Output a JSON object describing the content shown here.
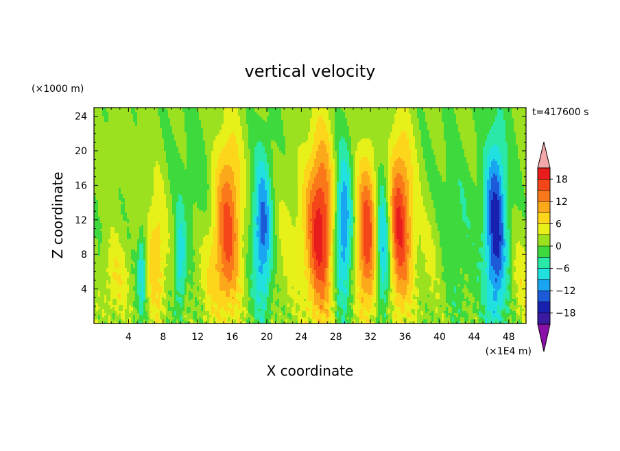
{
  "chart_data": {
    "type": "heatmap",
    "title": "vertical velocity",
    "xlabel": "X coordinate",
    "ylabel": "Z coordinate",
    "x_unit": "(×1E4 m)",
    "y_unit": "(×1000 m)",
    "time_label": "t=417600 s",
    "xlim": [
      0,
      50
    ],
    "ylim": [
      0,
      25
    ],
    "x_ticks": [
      4,
      8,
      12,
      16,
      20,
      24,
      28,
      32,
      36,
      40,
      44,
      48
    ],
    "y_ticks": [
      4,
      8,
      12,
      16,
      20,
      24
    ],
    "colorbar": {
      "tick_labels": [
        "18",
        "12",
        "6",
        "0",
        "−6",
        "−12",
        "−18"
      ],
      "tick_values": [
        18,
        12,
        6,
        0,
        -6,
        -12,
        -18
      ],
      "range": [
        -21,
        21
      ],
      "levels": [
        {
          "value": 19.5,
          "color": "#e81c1c"
        },
        {
          "value": 16.5,
          "color": "#f5461a"
        },
        {
          "value": 13.5,
          "color": "#fa7819"
        },
        {
          "value": 10.5,
          "color": "#fba81b"
        },
        {
          "value": 7.5,
          "color": "#fdd61c"
        },
        {
          "value": 4.5,
          "color": "#e8f01a"
        },
        {
          "value": 1.5,
          "color": "#9be11f"
        },
        {
          "value": -1.5,
          "color": "#3ed93c"
        },
        {
          "value": -4.5,
          "color": "#29e8a8"
        },
        {
          "value": -7.5,
          "color": "#20e0e0"
        },
        {
          "value": -10.5,
          "color": "#1aa5f2"
        },
        {
          "value": -13.5,
          "color": "#1c5ad8"
        },
        {
          "value": -16.5,
          "color": "#1820b0"
        },
        {
          "value": -19.5,
          "color": "#3a1aa0"
        }
      ],
      "over_color": "#f2a8a8",
      "under_color": "#8a10a8"
    },
    "features": [
      {
        "x": 15.5,
        "z": 11.5,
        "amp": 15,
        "sx": 1.1,
        "sz": 7.5
      },
      {
        "x": 26.2,
        "z": 11.0,
        "amp": 19,
        "sx": 1.2,
        "sz": 7.5
      },
      {
        "x": 31.6,
        "z": 10.0,
        "amp": 17,
        "sx": 0.9,
        "sz": 6.5
      },
      {
        "x": 35.3,
        "z": 11.5,
        "amp": 18,
        "sx": 1.1,
        "sz": 7.0
      },
      {
        "x": 7.2,
        "z": 8.0,
        "amp": 8,
        "sx": 0.9,
        "sz": 5.5
      },
      {
        "x": 2.5,
        "z": 5.0,
        "amp": 5,
        "sx": 1.0,
        "sz": 3.5
      },
      {
        "x": 13.5,
        "z": 6.0,
        "amp": 4,
        "sx": 1.2,
        "sz": 4.0
      },
      {
        "x": 22.5,
        "z": 9.0,
        "amp": 3,
        "sx": 1.5,
        "sz": 6.0
      },
      {
        "x": 39.0,
        "z": 8.0,
        "amp": 3,
        "sx": 1.2,
        "sz": 5.0
      },
      {
        "x": 49.5,
        "z": 5.0,
        "amp": 4,
        "sx": 0.8,
        "sz": 4.0
      },
      {
        "x": 5.6,
        "z": 6.0,
        "amp": -10,
        "sx": 0.35,
        "sz": 3.5
      },
      {
        "x": 10.0,
        "z": 7.0,
        "amp": -9,
        "sx": 0.4,
        "sz": 4.0
      },
      {
        "x": 19.5,
        "z": 10.5,
        "amp": -14,
        "sx": 0.8,
        "sz": 6.5
      },
      {
        "x": 28.8,
        "z": 11.0,
        "amp": -14,
        "sx": 0.8,
        "sz": 6.5
      },
      {
        "x": 33.5,
        "z": 9.5,
        "amp": -15,
        "sx": 0.7,
        "sz": 6.0
      },
      {
        "x": 46.5,
        "z": 11.0,
        "amp": -17,
        "sx": 0.9,
        "sz": 8.0
      },
      {
        "x": 42.0,
        "z": 12.0,
        "amp": -3,
        "sx": 2.0,
        "sz": 8.0
      },
      {
        "x": 11.5,
        "z": 16.0,
        "amp": -2,
        "sx": 2.0,
        "sz": 6.0
      },
      {
        "x": 3.0,
        "z": 20.0,
        "amp": 1,
        "sx": 2.5,
        "sz": 4.0
      },
      {
        "x": 44.0,
        "z": 22.0,
        "amp": 1,
        "sx": 2.0,
        "sz": 3.0
      }
    ]
  }
}
